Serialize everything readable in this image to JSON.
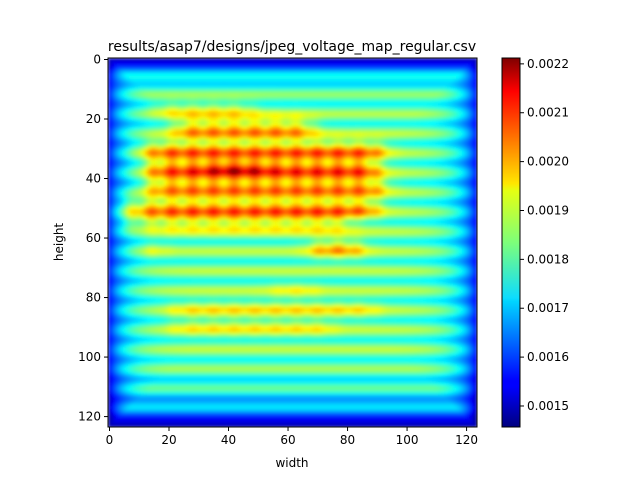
{
  "chart_data": {
    "type": "heatmap",
    "title": "results/asap7/designs/jpeg_voltage_map_regular.csv",
    "xlabel": "width",
    "ylabel": "height",
    "xlim": [
      0,
      124
    ],
    "ylim": [
      124,
      0
    ],
    "x_ticks": [
      "0",
      "20",
      "40",
      "60",
      "80",
      "100",
      "120"
    ],
    "y_ticks": [
      "0",
      "20",
      "40",
      "60",
      "80",
      "100",
      "120"
    ],
    "colormap": "jet",
    "colorbar": {
      "vmin": 0.001457,
      "vmax": 0.002212,
      "ticks": [
        "0.0015",
        "0.0016",
        "0.0017",
        "0.0018",
        "0.0019",
        "0.0020",
        "0.0021",
        "0.0022"
      ]
    },
    "grid_size": [
      124,
      124
    ],
    "description_values": {
      "edge_value": 0.00152,
      "background_value": 0.00182,
      "hotspot_peak": 0.00221,
      "hotspot_center": [
        42,
        37
      ]
    },
    "hot_regions": [
      {
        "x_range": [
          22,
          68
        ],
        "y_range": [
          20,
          26
        ],
        "value": 0.00205
      },
      {
        "x_range": [
          10,
          92
        ],
        "y_range": [
          28,
          33
        ],
        "value": 0.00208
      },
      {
        "x_range": [
          12,
          90
        ],
        "y_range": [
          34,
          39
        ],
        "value": 0.00213
      },
      {
        "x_range": [
          12,
          92
        ],
        "y_range": [
          40,
          45
        ],
        "value": 0.0021
      },
      {
        "x_range": [
          0,
          90
        ],
        "y_range": [
          47,
          53
        ],
        "value": 0.00207
      },
      {
        "x_range": [
          0,
          80
        ],
        "y_range": [
          53,
          57
        ],
        "value": 0.00199
      },
      {
        "x_range": [
          15,
          48
        ],
        "y_range": [
          15,
          18
        ],
        "value": 0.00199
      },
      {
        "x_range": [
          68,
          85
        ],
        "y_range": [
          61,
          66
        ],
        "value": 0.00203
      },
      {
        "x_range": [
          10,
          18
        ],
        "y_range": [
          62,
          66
        ],
        "value": 0.00196
      },
      {
        "x_range": [
          20,
          90
        ],
        "y_range": [
          82,
          86
        ],
        "value": 0.00194
      },
      {
        "x_range": [
          20,
          75
        ],
        "y_range": [
          88,
          92
        ],
        "value": 0.00193
      },
      {
        "x_range": [
          55,
          70
        ],
        "y_range": [
          76,
          79
        ],
        "value": 0.00192
      }
    ]
  }
}
